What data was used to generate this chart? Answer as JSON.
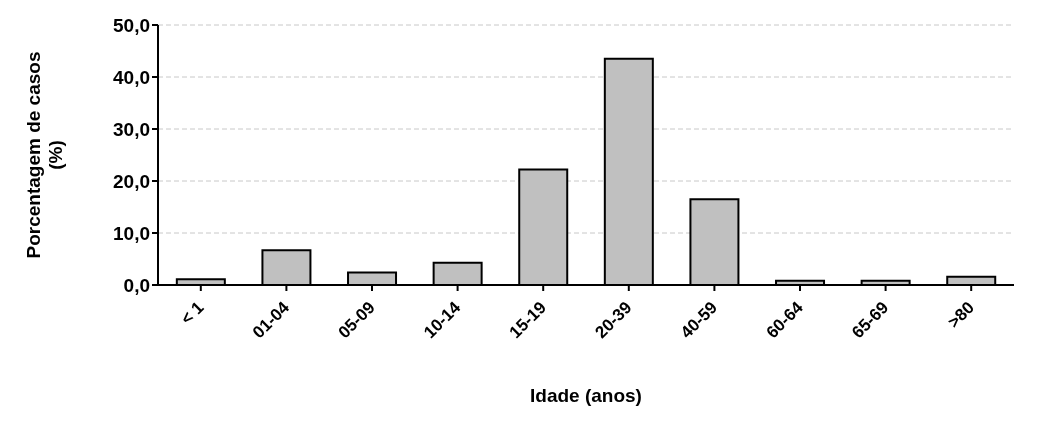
{
  "chart_data": {
    "type": "bar",
    "xlabel": "Idade (anos)",
    "ylabel": "Porcentagem de casos (%)",
    "categories": [
      "< 1",
      "01-04",
      "05-09",
      "10-14",
      "15-19",
      "20-39",
      "40-59",
      "60-64",
      "65-69",
      ">80"
    ],
    "values": [
      1.1,
      6.7,
      2.4,
      4.3,
      22.2,
      43.5,
      16.5,
      0.8,
      0.8,
      1.6
    ],
    "color": "#c0c0c0",
    "ylim": [
      0,
      50
    ],
    "yticks": [
      {
        "value": 0,
        "label": "0,0"
      },
      {
        "value": 10,
        "label": "10,0"
      },
      {
        "value": 20,
        "label": "20,0"
      },
      {
        "value": 30,
        "label": "30,0"
      },
      {
        "value": 40,
        "label": "40,0"
      },
      {
        "value": 50,
        "label": "50,0"
      }
    ],
    "grid": "y"
  }
}
